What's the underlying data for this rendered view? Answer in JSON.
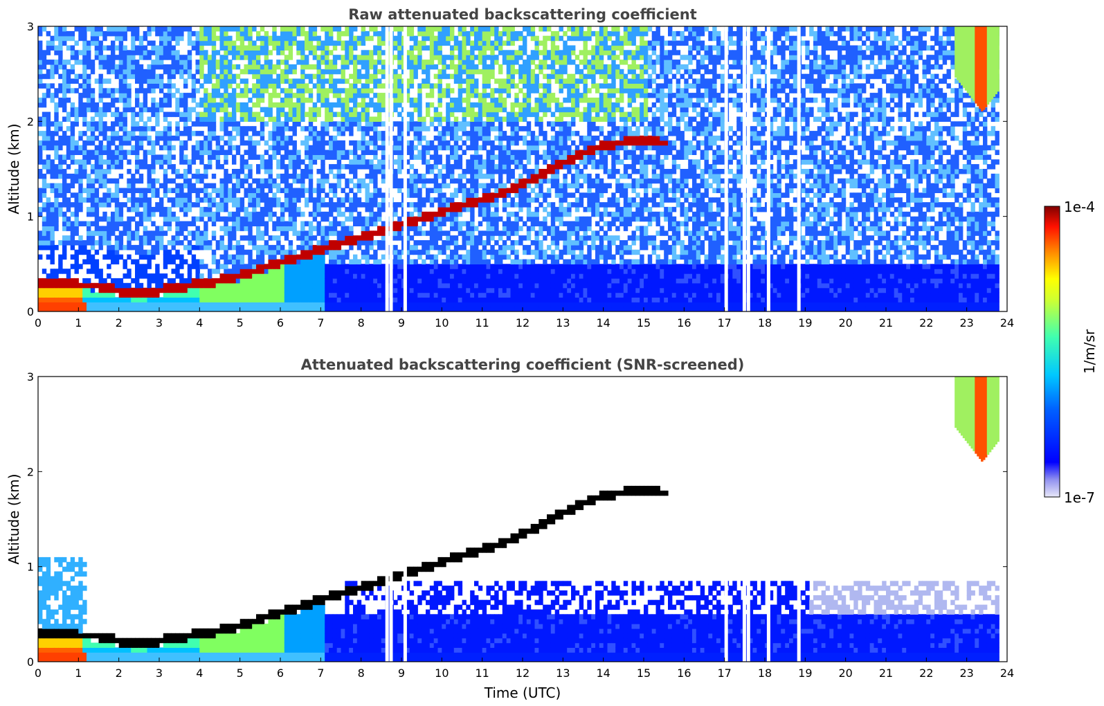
{
  "colors": {
    "colormap": [
      "#e8e8f8",
      "#0000ff",
      "#0080ff",
      "#00ffff",
      "#7fff7f",
      "#ffff00",
      "#ff8000",
      "#ff0000",
      "#800000"
    ],
    "text": "#444444"
  },
  "chart_data": [
    {
      "type": "heatmap",
      "title": "Raw attenuated backscattering coefficient",
      "xlabel": "",
      "ylabel": "Altitude (km)",
      "xlim": [
        0,
        24
      ],
      "ylim": [
        0,
        3
      ],
      "xticks": [
        "0",
        "1",
        "2",
        "3",
        "4",
        "5",
        "6",
        "7",
        "8",
        "9",
        "10",
        "11",
        "12",
        "13",
        "14",
        "15",
        "16",
        "17",
        "18",
        "19",
        "20",
        "21",
        "22",
        "23",
        "24"
      ],
      "yticks": [
        "0",
        "1",
        "2",
        "3"
      ],
      "layer_altitude_km": [
        [
          0.0,
          0.3
        ],
        [
          0.5,
          0.3
        ],
        [
          1.0,
          0.28
        ],
        [
          1.5,
          0.27
        ],
        [
          2.0,
          0.22
        ],
        [
          2.5,
          0.2
        ],
        [
          3.0,
          0.22
        ],
        [
          3.5,
          0.26
        ],
        [
          4.0,
          0.29
        ],
        [
          4.5,
          0.33
        ],
        [
          5.0,
          0.38
        ],
        [
          5.5,
          0.45
        ],
        [
          6.0,
          0.52
        ],
        [
          6.5,
          0.58
        ],
        [
          7.0,
          0.66
        ],
        [
          7.5,
          0.72
        ],
        [
          8.0,
          0.78
        ],
        [
          8.5,
          0.85
        ],
        [
          9.0,
          0.92
        ],
        [
          9.5,
          0.98
        ],
        [
          10.0,
          1.05
        ],
        [
          10.5,
          1.12
        ],
        [
          11.0,
          1.18
        ],
        [
          11.5,
          1.25
        ],
        [
          12.0,
          1.35
        ],
        [
          12.5,
          1.45
        ],
        [
          13.0,
          1.57
        ],
        [
          13.5,
          1.67
        ],
        [
          14.0,
          1.75
        ],
        [
          14.5,
          1.78
        ],
        [
          15.0,
          1.8
        ],
        [
          15.4,
          1.78
        ]
      ],
      "data_gaps_utc": [
        8.6,
        8.7,
        9.05,
        17.0,
        17.45,
        17.55,
        18.05,
        18.8
      ],
      "cloud_upper_right": {
        "t_start": 22.7,
        "t_end": 23.8,
        "base_km": 2.1
      },
      "colorbar": {
        "label": "1/m/sr",
        "min": "1e-7",
        "max": "1e-4"
      }
    },
    {
      "type": "heatmap",
      "title": "Attenuated backscattering coefficient (SNR-screened)",
      "xlabel": "Time (UTC)",
      "ylabel": "Altitude (km)",
      "xlim": [
        0,
        24
      ],
      "ylim": [
        0,
        3
      ],
      "xticks": [
        "0",
        "1",
        "2",
        "3",
        "4",
        "5",
        "6",
        "7",
        "8",
        "9",
        "10",
        "11",
        "12",
        "13",
        "14",
        "15",
        "16",
        "17",
        "18",
        "19",
        "20",
        "21",
        "22",
        "23",
        "24"
      ],
      "yticks": [
        "0",
        "1",
        "2",
        "3"
      ],
      "layer_altitude_km": [
        [
          0.0,
          0.3
        ],
        [
          0.5,
          0.3
        ],
        [
          1.0,
          0.28
        ],
        [
          1.5,
          0.27
        ],
        [
          2.0,
          0.22
        ],
        [
          2.5,
          0.2
        ],
        [
          3.0,
          0.22
        ],
        [
          3.5,
          0.26
        ],
        [
          4.0,
          0.29
        ],
        [
          4.5,
          0.33
        ],
        [
          5.0,
          0.38
        ],
        [
          5.5,
          0.45
        ],
        [
          6.0,
          0.52
        ],
        [
          6.5,
          0.58
        ],
        [
          7.0,
          0.66
        ],
        [
          7.5,
          0.72
        ],
        [
          8.0,
          0.78
        ],
        [
          8.5,
          0.85
        ],
        [
          9.0,
          0.92
        ],
        [
          9.5,
          0.98
        ],
        [
          10.0,
          1.05
        ],
        [
          10.5,
          1.12
        ],
        [
          11.0,
          1.18
        ],
        [
          11.5,
          1.25
        ],
        [
          12.0,
          1.35
        ],
        [
          12.5,
          1.45
        ],
        [
          13.0,
          1.57
        ],
        [
          13.5,
          1.67
        ],
        [
          14.0,
          1.75
        ],
        [
          14.5,
          1.78
        ],
        [
          15.0,
          1.8
        ],
        [
          15.4,
          1.78
        ]
      ],
      "data_gaps_utc": [
        8.6,
        8.7,
        9.05,
        17.0,
        17.45,
        17.55,
        18.05,
        18.8
      ],
      "cloud_upper_right": {
        "t_start": 22.7,
        "t_end": 23.8,
        "base_km": 2.1
      }
    }
  ]
}
